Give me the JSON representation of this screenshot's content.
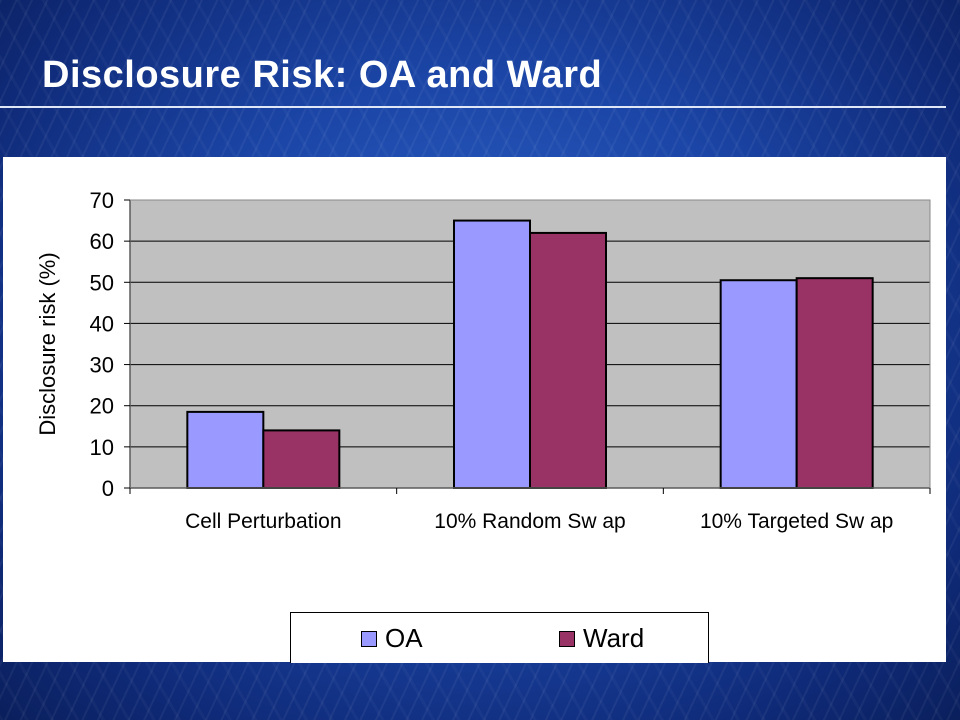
{
  "slide": {
    "title": "Disclosure Risk: OA and Ward"
  },
  "colors": {
    "plot_background": "#c0c0c0",
    "oa": "#9999ff",
    "ward": "#993366"
  },
  "chart_data": {
    "type": "bar",
    "categories": [
      "Cell Perturbation",
      "10% Random Sw ap",
      "10% Targeted Sw ap"
    ],
    "series": [
      {
        "name": "OA",
        "values": [
          18.5,
          65,
          50.5
        ]
      },
      {
        "name": "Ward",
        "values": [
          14,
          62,
          51
        ]
      }
    ],
    "ylabel": "Disclosure risk (%)",
    "ylim": [
      0,
      70
    ],
    "yticks": [
      0,
      10,
      20,
      30,
      40,
      50,
      60,
      70
    ],
    "grid": true,
    "legend": "bottom"
  }
}
